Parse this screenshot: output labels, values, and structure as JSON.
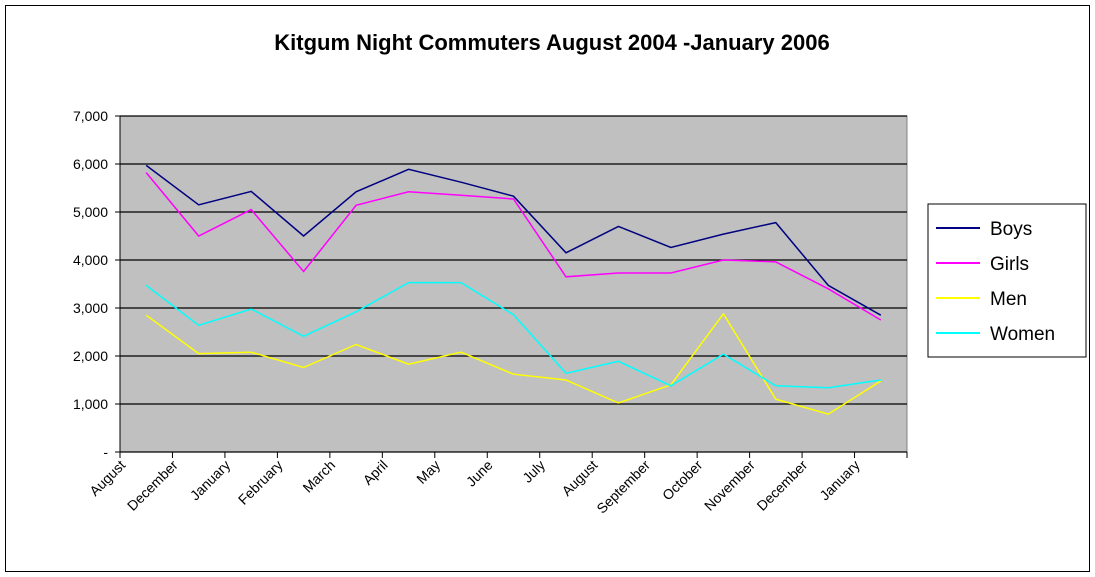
{
  "chart_data": {
    "type": "line",
    "title": "Kitgum Night Commuters August 2004 -January 2006",
    "categories": [
      "August",
      "December",
      "January",
      "February",
      "March",
      "April",
      "May",
      "June",
      "July",
      "August",
      "September",
      "October",
      "November",
      "December",
      "January"
    ],
    "series": [
      {
        "name": "Boys",
        "color": "#000080",
        "values": [
          5970,
          5150,
          5430,
          4500,
          5420,
          5890,
          5620,
          5330,
          4150,
          4700,
          4260,
          4540,
          4780,
          3470,
          2850
        ]
      },
      {
        "name": "Girls",
        "color": "#ff00ff",
        "values": [
          5820,
          4500,
          5050,
          3760,
          5140,
          5420,
          5350,
          5270,
          3650,
          3730,
          3730,
          4000,
          3960,
          3400,
          2750
        ]
      },
      {
        "name": "Men",
        "color": "#ffff00",
        "values": [
          2850,
          2050,
          2080,
          1760,
          2240,
          1830,
          2080,
          1620,
          1500,
          1020,
          1400,
          2880,
          1100,
          790,
          1480
        ]
      },
      {
        "name": "Women",
        "color": "#00ffff",
        "values": [
          3470,
          2640,
          2980,
          2410,
          2920,
          3530,
          3530,
          2860,
          1640,
          1890,
          1380,
          2040,
          1380,
          1340,
          1500
        ]
      }
    ],
    "ylim": [
      0,
      7000
    ],
    "yticks": [
      {
        "value": 0,
        "label": "-"
      },
      {
        "value": 1000,
        "label": "1,000"
      },
      {
        "value": 2000,
        "label": "2,000"
      },
      {
        "value": 3000,
        "label": "3,000"
      },
      {
        "value": 4000,
        "label": "4,000"
      },
      {
        "value": 5000,
        "label": "5,000"
      },
      {
        "value": 6000,
        "label": "6,000"
      },
      {
        "value": 7000,
        "label": "7,000"
      }
    ],
    "grid": true,
    "plot_background": "#c0c0c0",
    "legend": "right"
  }
}
